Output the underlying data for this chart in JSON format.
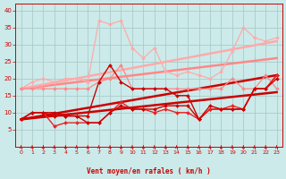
{
  "xlabel": "Vent moyen/en rafales ( km/h )",
  "background_color": "#cceaea",
  "grid_color": "#aacccc",
  "text_color": "#cc0000",
  "xlim": [
    -0.5,
    23.5
  ],
  "ylim": [
    0,
    42
  ],
  "yticks": [
    5,
    10,
    15,
    20,
    25,
    30,
    35,
    40
  ],
  "xticks": [
    0,
    1,
    2,
    3,
    4,
    5,
    6,
    7,
    8,
    9,
    10,
    11,
    12,
    13,
    14,
    15,
    16,
    17,
    18,
    19,
    20,
    21,
    22,
    23
  ],
  "series": [
    {
      "x": [
        0,
        1,
        2,
        3,
        4,
        5,
        6,
        7,
        8,
        9,
        10,
        11,
        12,
        13,
        14,
        15,
        16,
        17,
        18,
        19,
        20,
        21,
        22,
        23
      ],
      "y": [
        17,
        19,
        20,
        19,
        20,
        20,
        19,
        37,
        36,
        37,
        29,
        26,
        29,
        22,
        21,
        22,
        21,
        20,
        22,
        28,
        35,
        32,
        31,
        32
      ],
      "color": "#ffaaaa",
      "lw": 0.9,
      "marker": "D",
      "ms": 2.0,
      "zorder": 3
    },
    {
      "x": [
        0,
        1,
        2,
        3,
        4,
        5,
        6,
        7,
        8,
        9,
        10,
        11,
        12,
        13,
        14,
        15,
        16,
        17,
        18,
        19,
        20,
        21,
        22,
        23
      ],
      "y": [
        17,
        17,
        17,
        17,
        17,
        17,
        17,
        19,
        20,
        24,
        17,
        17,
        17,
        17,
        17,
        17,
        17,
        17,
        17,
        20,
        17,
        17,
        21,
        17
      ],
      "color": "#ff8888",
      "lw": 0.9,
      "marker": "D",
      "ms": 2.0,
      "zorder": 3
    },
    {
      "x": [
        0,
        1,
        2,
        3,
        4,
        5,
        6,
        7,
        8,
        9,
        10,
        11,
        12,
        13,
        14,
        15,
        16,
        17,
        18,
        19,
        20,
        21,
        22,
        23
      ],
      "y": [
        8,
        10,
        10,
        9,
        9,
        9,
        9,
        19,
        24,
        19,
        17,
        17,
        17,
        17,
        15,
        15,
        8,
        11,
        11,
        11,
        11,
        17,
        17,
        21
      ],
      "color": "#cc0000",
      "lw": 1.0,
      "marker": "D",
      "ms": 2.0,
      "zorder": 4
    },
    {
      "x": [
        0,
        1,
        2,
        3,
        4,
        5,
        6,
        7,
        8,
        9,
        10,
        11,
        12,
        13,
        14,
        15,
        16,
        17,
        18,
        19,
        20,
        21,
        22,
        23
      ],
      "y": [
        8,
        10,
        10,
        6,
        7,
        7,
        7,
        7,
        10,
        13,
        11,
        11,
        10,
        11,
        10,
        10,
        8,
        11,
        11,
        12,
        11,
        17,
        17,
        21
      ],
      "color": "#ee2222",
      "lw": 1.0,
      "marker": "D",
      "ms": 2.0,
      "zorder": 4
    },
    {
      "x": [
        0,
        1,
        2,
        3,
        4,
        5,
        6,
        7,
        8,
        9,
        10,
        11,
        12,
        13,
        14,
        15,
        16,
        17,
        18,
        19,
        20,
        21,
        22,
        23
      ],
      "y": [
        8,
        10,
        10,
        10,
        9,
        9,
        7,
        7,
        10,
        12,
        11,
        11,
        11,
        12,
        12,
        12,
        8,
        12,
        11,
        11,
        11,
        17,
        17,
        20
      ],
      "color": "#cc0000",
      "lw": 1.0,
      "marker": "D",
      "ms": 2.0,
      "zorder": 4
    },
    {
      "x": [
        0,
        23
      ],
      "y": [
        8,
        16
      ],
      "color": "#cc0000",
      "lw": 1.8,
      "marker": null,
      "ms": 0,
      "zorder": 2
    },
    {
      "x": [
        0,
        23
      ],
      "y": [
        8,
        21
      ],
      "color": "#cc0000",
      "lw": 1.8,
      "marker": null,
      "ms": 0,
      "zorder": 2
    },
    {
      "x": [
        0,
        23
      ],
      "y": [
        17,
        26
      ],
      "color": "#ff8888",
      "lw": 1.8,
      "marker": null,
      "ms": 0,
      "zorder": 2
    },
    {
      "x": [
        0,
        23
      ],
      "y": [
        17,
        31
      ],
      "color": "#ffaaaa",
      "lw": 1.8,
      "marker": null,
      "ms": 0,
      "zorder": 2
    }
  ]
}
